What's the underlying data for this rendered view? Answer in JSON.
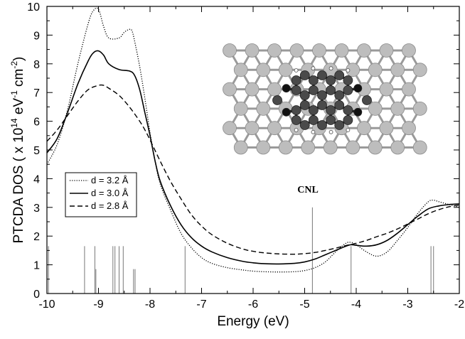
{
  "chart_data": {
    "type": "line",
    "xlabel": "Energy (eV)",
    "ylabel_main": "PTCDA DOS ( x 10",
    "ylabel_exp1": "14",
    "ylabel_mid": " eV",
    "ylabel_exp2": "-1",
    "ylabel_mid2": " cm",
    "ylabel_exp3": "-2",
    "ylabel_end": ")",
    "xlim": [
      -10,
      -2
    ],
    "ylim": [
      0,
      10
    ],
    "x_ticks": [
      -10,
      -9,
      -8,
      -7,
      -6,
      -5,
      -4,
      -3,
      -2
    ],
    "x_tick_labels": [
      "-10",
      "-9",
      "-8",
      "-7",
      "-6",
      "-5",
      "-4",
      "-3",
      "-2"
    ],
    "y_ticks": [
      0,
      1,
      2,
      3,
      4,
      5,
      6,
      7,
      8,
      9,
      10
    ],
    "y_tick_labels": [
      "0",
      "1",
      "2",
      "3",
      "4",
      "5",
      "6",
      "7",
      "8",
      "9",
      "10"
    ],
    "legend_position": "left",
    "annotation": "CNL",
    "cnl_line": {
      "x": -4.85,
      "y": 3.0
    },
    "series": [
      {
        "name": "d = 3.2 Å",
        "style": "dotted",
        "x": [
          -10,
          -9.8,
          -9.6,
          -9.4,
          -9.2,
          -9.1,
          -9.0,
          -8.9,
          -8.8,
          -8.6,
          -8.5,
          -8.4,
          -8.35,
          -8.3,
          -8.2,
          -8.1,
          -8.0,
          -7.9,
          -7.8,
          -7.6,
          -7.4,
          -7.2,
          -7.0,
          -6.8,
          -6.5,
          -6.2,
          -6.0,
          -5.8,
          -5.5,
          -5.2,
          -5.0,
          -4.8,
          -4.6,
          -4.4,
          -4.2,
          -4.1,
          -4.0,
          -3.8,
          -3.6,
          -3.4,
          -3.2,
          -3.0,
          -2.8,
          -2.6,
          -2.5,
          -2.4,
          -2.2,
          -2.0
        ],
        "y": [
          4.5,
          5.2,
          6.4,
          8.0,
          9.4,
          9.85,
          9.9,
          9.3,
          8.9,
          8.9,
          9.1,
          9.2,
          9.15,
          8.8,
          7.9,
          6.8,
          5.6,
          4.6,
          3.8,
          2.9,
          2.1,
          1.6,
          1.25,
          1.05,
          0.9,
          0.82,
          0.78,
          0.76,
          0.75,
          0.76,
          0.8,
          0.9,
          1.1,
          1.45,
          1.75,
          1.78,
          1.7,
          1.45,
          1.3,
          1.45,
          1.85,
          2.3,
          2.8,
          3.2,
          3.25,
          3.2,
          3.1,
          3.0
        ]
      },
      {
        "name": "d = 3.0 Å",
        "style": "solid",
        "x": [
          -10,
          -9.8,
          -9.6,
          -9.4,
          -9.2,
          -9.1,
          -9.0,
          -8.9,
          -8.8,
          -8.6,
          -8.4,
          -8.3,
          -8.2,
          -8.1,
          -8.0,
          -7.9,
          -7.8,
          -7.6,
          -7.4,
          -7.2,
          -7.0,
          -6.8,
          -6.5,
          -6.2,
          -6.0,
          -5.8,
          -5.5,
          -5.2,
          -5.0,
          -4.8,
          -4.6,
          -4.4,
          -4.2,
          -4.1,
          -4.0,
          -3.8,
          -3.6,
          -3.4,
          -3.2,
          -3.0,
          -2.8,
          -2.6,
          -2.4,
          -2.2,
          -2.0
        ],
        "y": [
          4.9,
          5.4,
          6.3,
          7.3,
          8.1,
          8.38,
          8.45,
          8.3,
          8.0,
          7.8,
          7.75,
          7.6,
          7.1,
          6.3,
          5.5,
          4.6,
          3.9,
          3.05,
          2.4,
          1.95,
          1.65,
          1.45,
          1.25,
          1.12,
          1.07,
          1.04,
          1.03,
          1.05,
          1.1,
          1.2,
          1.35,
          1.5,
          1.65,
          1.7,
          1.68,
          1.65,
          1.7,
          1.85,
          2.1,
          2.4,
          2.7,
          2.95,
          3.05,
          3.1,
          3.12
        ]
      },
      {
        "name": "d = 2.8 Å",
        "style": "dashed",
        "x": [
          -10,
          -9.8,
          -9.6,
          -9.4,
          -9.2,
          -9.0,
          -8.9,
          -8.8,
          -8.6,
          -8.4,
          -8.2,
          -8.1,
          -8.0,
          -7.8,
          -7.6,
          -7.4,
          -7.2,
          -7.0,
          -6.8,
          -6.5,
          -6.2,
          -6.0,
          -5.8,
          -5.5,
          -5.2,
          -5.0,
          -4.8,
          -4.6,
          -4.4,
          -4.2,
          -4.0,
          -3.8,
          -3.6,
          -3.4,
          -3.2,
          -3.0,
          -2.8,
          -2.6,
          -2.4,
          -2.2,
          -2.0
        ],
        "y": [
          5.3,
          5.7,
          6.2,
          6.7,
          7.1,
          7.25,
          7.25,
          7.15,
          6.9,
          6.5,
          6.0,
          5.7,
          5.35,
          4.6,
          3.9,
          3.3,
          2.75,
          2.35,
          2.05,
          1.75,
          1.55,
          1.47,
          1.42,
          1.38,
          1.37,
          1.39,
          1.43,
          1.5,
          1.58,
          1.67,
          1.75,
          1.85,
          1.98,
          2.1,
          2.25,
          2.42,
          2.6,
          2.78,
          2.92,
          3.02,
          3.08
        ]
      }
    ],
    "stick_spectrum": [
      {
        "x": -9.97,
        "y": 1.65
      },
      {
        "x": -9.27,
        "y": 1.65
      },
      {
        "x": -9.07,
        "y": 1.65
      },
      {
        "x": -9.05,
        "y": 0.85
      },
      {
        "x": -8.72,
        "y": 1.65
      },
      {
        "x": -8.68,
        "y": 1.65
      },
      {
        "x": -8.6,
        "y": 1.65
      },
      {
        "x": -8.52,
        "y": 1.65
      },
      {
        "x": -8.32,
        "y": 0.85
      },
      {
        "x": -8.29,
        "y": 0.85
      },
      {
        "x": -7.32,
        "y": 1.65
      },
      {
        "x": -4.85,
        "y": 3.0
      },
      {
        "x": -4.1,
        "y": 1.65
      },
      {
        "x": -2.55,
        "y": 1.65
      },
      {
        "x": -2.5,
        "y": 1.65
      }
    ]
  },
  "inset": {
    "colors": {
      "substrate": "#bdbdbd",
      "bond": "#9a9a9a",
      "carbon": "#4a4a4a",
      "carbon_dark": "#555555",
      "oxygen": "#111111",
      "hydrogen": "#ffffff"
    }
  }
}
